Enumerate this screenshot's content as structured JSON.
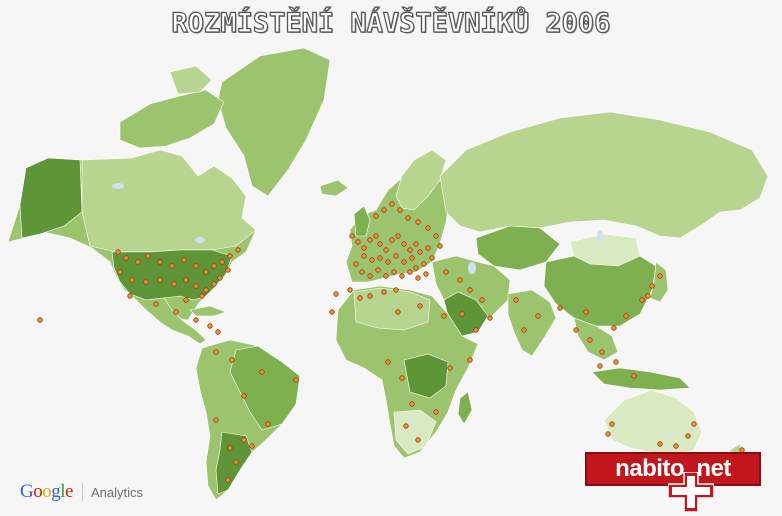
{
  "title": "ROZMÍSTĚNÍ NÁVŠTĚVNÍKŮ 2006",
  "footer": {
    "google": "Google",
    "google_colors": [
      "#3366cc",
      "#cc2200",
      "#f2a900",
      "#3366cc",
      "#339933",
      "#cc2200"
    ],
    "analytics": "Analytics"
  },
  "brand": {
    "text": "nabito  net",
    "background": "#c0161c"
  },
  "map": {
    "ocean": "#f6f6f6",
    "land_colors": [
      "#b7d58f",
      "#9cc46e",
      "#7fb04f",
      "#5e9637",
      "#d9e9c2"
    ],
    "marker_color": "#e09a2a",
    "marker_border": "#a4321c"
  }
}
